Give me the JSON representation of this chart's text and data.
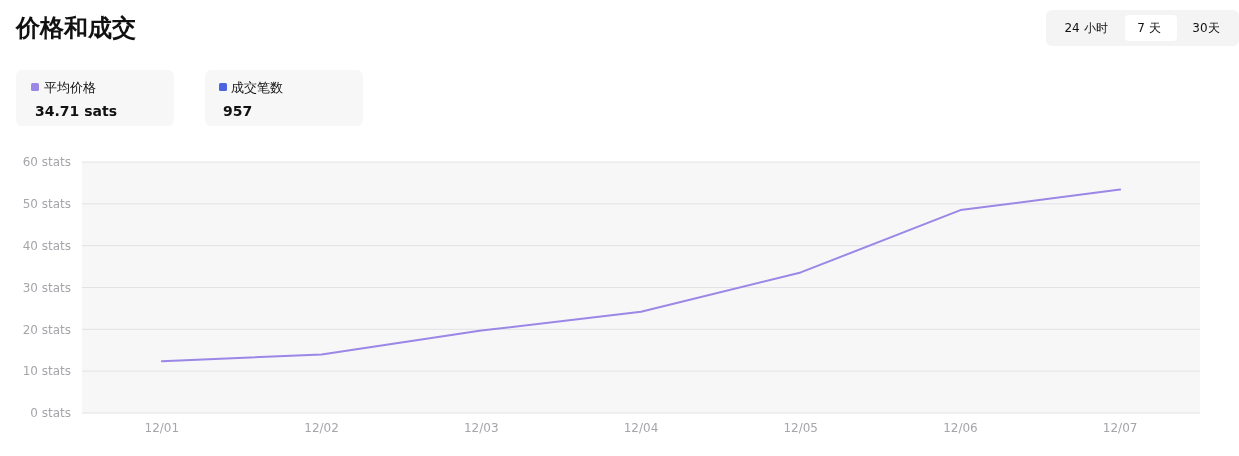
{
  "chart_data": {
    "type": "line",
    "title": "价格和成交",
    "categories": [
      "12/01",
      "12/02",
      "12/03",
      "12/04",
      "12/05",
      "12/06",
      "12/07"
    ],
    "series": [
      {
        "name": "平均价格",
        "color": "#9b87e6",
        "values": [
          12.4,
          14.0,
          19.7,
          24.2,
          33.6,
          48.5,
          53.4
        ]
      }
    ],
    "ylim": [
      0,
      60
    ],
    "yticks": [
      {
        "value": 0,
        "label": "0 stats"
      },
      {
        "value": 10,
        "label": "10 stats"
      },
      {
        "value": 20,
        "label": "20 stats"
      },
      {
        "value": 30,
        "label": "30 stats"
      },
      {
        "value": 40,
        "label": "40 stats"
      },
      {
        "value": 50,
        "label": "50 stats"
      },
      {
        "value": 60,
        "label": "60 stats"
      }
    ],
    "grid": "y",
    "legend": "top left",
    "marker": "none",
    "line_style": "solid",
    "annotations": [
      "34.71 sats",
      "成交笔数",
      "957",
      "24 小时",
      "7 天",
      "30天"
    ]
  }
}
